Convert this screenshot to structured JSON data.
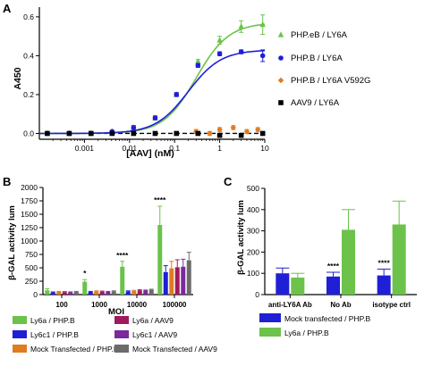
{
  "chart_data": [
    {
      "panel": "A",
      "type": "line",
      "xlabel": "[AAV] (nM)",
      "ylabel": "A450",
      "xscale": "log",
      "xlim": [
        0.0001,
        10
      ],
      "ylim": [
        -0.03,
        0.65
      ],
      "xticks": [
        0.001,
        0.01,
        0.1,
        1,
        10
      ],
      "xtick_labels": [
        "0.001",
        "0.01",
        "0.1",
        "1",
        "10"
      ],
      "yticks": [
        0.0,
        0.2,
        0.4,
        0.6
      ],
      "ytick_labels": [
        "0.0",
        "0.2",
        "0.4",
        "0.6"
      ],
      "legend_position": "right",
      "series": [
        {
          "name": "PHP.eB / LY6A",
          "color": "#6cc24a",
          "marker": "triangle",
          "x": [
            0.00015,
            0.00046,
            0.0014,
            0.0041,
            0.0123,
            0.037,
            0.11,
            0.33,
            1.0,
            3.0,
            9.0
          ],
          "y": [
            0.0,
            0.0,
            0.0,
            0.01,
            0.03,
            0.08,
            0.2,
            0.37,
            0.48,
            0.55,
            0.56
          ],
          "err": [
            0.005,
            0.005,
            0.005,
            0.005,
            0.01,
            0.01,
            0.01,
            0.01,
            0.02,
            0.03,
            0.05
          ],
          "fit": {
            "bottom": 0.0,
            "top": 0.57,
            "ec50": 0.3,
            "hill": 1.2
          }
        },
        {
          "name": "PHP.B / LY6A",
          "color": "#1f1fd6",
          "marker": "circle",
          "x": [
            0.00015,
            0.00046,
            0.0014,
            0.0041,
            0.0123,
            0.037,
            0.11,
            0.33,
            1.0,
            3.0,
            9.0
          ],
          "y": [
            0.0,
            0.0,
            0.0,
            0.01,
            0.03,
            0.08,
            0.2,
            0.35,
            0.41,
            0.42,
            0.4
          ],
          "err": [
            0.005,
            0.005,
            0.005,
            0.005,
            0.01,
            0.01,
            0.01,
            0.01,
            0.01,
            0.01,
            0.03
          ],
          "fit": {
            "bottom": 0.0,
            "top": 0.43,
            "ec50": 0.2,
            "hill": 1.2
          }
        },
        {
          "name": "PHP.B / LY6A V592G",
          "color": "#e07b1f",
          "marker": "diamond",
          "x": [
            0.3,
            0.6,
            1.0,
            2.0,
            4.0,
            7.0
          ],
          "y": [
            0.01,
            0.0,
            0.02,
            0.03,
            0.01,
            0.02
          ],
          "err": [
            0.01,
            0.01,
            0.01,
            0.01,
            0.01,
            0.01
          ]
        },
        {
          "name": "AAV9 / LY6A",
          "color": "#000000",
          "marker": "square",
          "x": [
            0.00015,
            0.00046,
            0.0014,
            0.0041,
            0.0123,
            0.037,
            0.11,
            0.33,
            1.0,
            3.0,
            9.0
          ],
          "y": [
            0.0,
            0.0,
            0.0,
            0.0,
            0.0,
            0.0,
            0.0,
            0.0,
            -0.01,
            -0.01,
            0.0
          ],
          "err": [
            0.005,
            0.005,
            0.005,
            0.005,
            0.005,
            0.005,
            0.005,
            0.005,
            0.005,
            0.005,
            0.005
          ]
        }
      ]
    },
    {
      "panel": "B",
      "type": "bar",
      "xlabel": "MOI",
      "ylabel": "β-GAL activity lum",
      "ylim": [
        0,
        2000
      ],
      "yticks": [
        0,
        250,
        500,
        750,
        1000,
        1250,
        1500,
        1750,
        2000
      ],
      "categories": [
        "100",
        "1000",
        "10000",
        "100000"
      ],
      "annotations": [
        "",
        "*",
        "****",
        "****"
      ],
      "series": [
        {
          "name": "Ly6a / PHP.B",
          "color": "#6cc24a",
          "values": [
            80,
            240,
            520,
            1300
          ],
          "err": [
            30,
            40,
            100,
            350
          ]
        },
        {
          "name": "Ly6c1 / PHP.B",
          "color": "#1f1fd6",
          "values": [
            40,
            50,
            60,
            420
          ],
          "err": [
            10,
            10,
            10,
            120
          ]
        },
        {
          "name": "Mock Transfected / PHP.B",
          "color": "#e07b1f",
          "values": [
            50,
            60,
            70,
            490
          ],
          "err": [
            10,
            10,
            10,
            130
          ]
        },
        {
          "name": "Ly6a / AAV9",
          "color": "#a0185e",
          "values": [
            45,
            55,
            80,
            510
          ],
          "err": [
            10,
            10,
            10,
            140
          ]
        },
        {
          "name": "Ly6c1 / AAV9",
          "color": "#7a2a9a",
          "values": [
            40,
            50,
            75,
            520
          ],
          "err": [
            10,
            10,
            10,
            140
          ]
        },
        {
          "name": "Mock Transfected / AAV9",
          "color": "#6b6b6b",
          "values": [
            50,
            60,
            90,
            640
          ],
          "err": [
            10,
            10,
            10,
            150
          ]
        }
      ],
      "legend_position": "bottom"
    },
    {
      "panel": "C",
      "type": "bar",
      "ylabel": "β-GAL activity lum",
      "ylim": [
        0,
        500
      ],
      "yticks": [
        0,
        100,
        200,
        300,
        400,
        500
      ],
      "categories": [
        "anti-LY6A Ab",
        "No Ab",
        "isotype ctrl"
      ],
      "annotations": [
        "",
        "****",
        "****"
      ],
      "series": [
        {
          "name": "Mock transfected / PHP.B",
          "color": "#1f1fd6",
          "values": [
            100,
            85,
            90
          ],
          "err": [
            25,
            20,
            30
          ]
        },
        {
          "name": "Ly6a / PHP.B",
          "color": "#6cc24a",
          "values": [
            80,
            305,
            330
          ],
          "err": [
            20,
            95,
            110
          ]
        }
      ],
      "legend_position": "bottom"
    }
  ]
}
